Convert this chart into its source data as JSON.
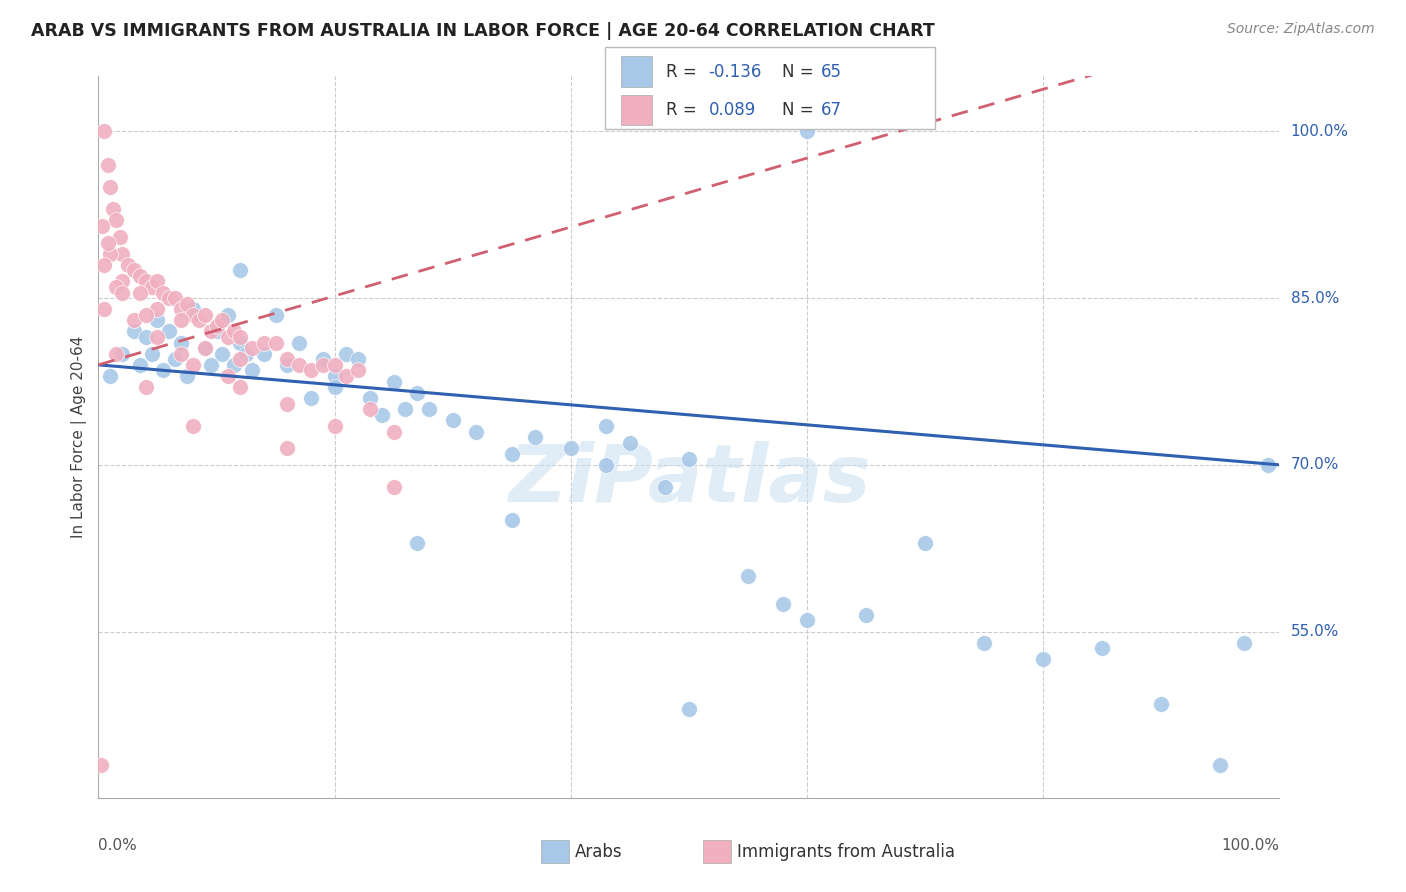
{
  "title": "ARAB VS IMMIGRANTS FROM AUSTRALIA IN LABOR FORCE | AGE 20-64 CORRELATION CHART",
  "source": "Source: ZipAtlas.com",
  "ylabel": "In Labor Force | Age 20-64",
  "xlim": [
    0,
    100
  ],
  "ylim": [
    40,
    105
  ],
  "yticks": [
    55.0,
    70.0,
    85.0,
    100.0
  ],
  "legend_arab_r": "-0.136",
  "legend_arab_n": "65",
  "legend_imm_r": "0.089",
  "legend_imm_n": "67",
  "watermark": "ZiPatlas",
  "arab_color": "#a8c8e8",
  "arab_line_color": "#3060b0",
  "imm_color": "#f0b0c0",
  "imm_line_color": "#d06070",
  "arab_scatter_x": [
    1.0,
    2.0,
    3.0,
    3.5,
    4.0,
    4.5,
    5.0,
    5.5,
    6.0,
    6.5,
    7.0,
    7.5,
    8.0,
    9.0,
    9.5,
    10.0,
    10.5,
    11.0,
    11.5,
    12.0,
    12.5,
    13.0,
    14.0,
    15.0,
    16.0,
    17.0,
    18.0,
    19.0,
    20.0,
    21.0,
    22.0,
    23.0,
    24.0,
    25.0,
    26.0,
    27.0,
    28.0,
    30.0,
    32.0,
    35.0,
    37.0,
    40.0,
    43.0,
    45.0,
    48.0,
    50.0,
    55.0,
    58.0,
    60.0,
    65.0,
    70.0,
    75.0,
    80.0,
    85.0,
    90.0,
    95.0,
    97.0,
    99.0,
    12.0,
    20.0,
    27.0,
    35.0,
    43.0,
    50.0,
    60.0
  ],
  "arab_scatter_y": [
    78.0,
    80.0,
    82.0,
    79.0,
    81.5,
    80.0,
    83.0,
    78.5,
    82.0,
    79.5,
    81.0,
    78.0,
    84.0,
    80.5,
    79.0,
    82.0,
    80.0,
    83.5,
    79.0,
    81.0,
    80.0,
    78.5,
    80.0,
    83.5,
    79.0,
    81.0,
    76.0,
    79.5,
    78.0,
    80.0,
    79.5,
    76.0,
    74.5,
    77.5,
    75.0,
    76.5,
    75.0,
    74.0,
    73.0,
    71.0,
    72.5,
    71.5,
    70.0,
    72.0,
    68.0,
    70.5,
    60.0,
    57.5,
    56.0,
    56.5,
    63.0,
    54.0,
    52.5,
    53.5,
    48.5,
    43.0,
    54.0,
    70.0,
    87.5,
    77.0,
    63.0,
    65.0,
    73.5,
    48.0,
    100.0
  ],
  "imm_scatter_x": [
    0.5,
    0.8,
    1.0,
    1.2,
    1.5,
    1.8,
    2.0,
    2.5,
    3.0,
    3.5,
    4.0,
    4.5,
    5.0,
    5.5,
    6.0,
    6.5,
    7.0,
    7.5,
    8.0,
    8.5,
    9.0,
    9.5,
    10.0,
    10.5,
    11.0,
    11.5,
    12.0,
    13.0,
    14.0,
    15.0,
    16.0,
    17.0,
    18.0,
    19.0,
    20.0,
    21.0,
    22.0,
    23.0,
    25.0,
    0.3,
    1.0,
    2.0,
    3.5,
    5.0,
    7.0,
    9.0,
    12.0,
    16.0,
    0.5,
    1.5,
    3.0,
    5.0,
    8.0,
    12.0,
    20.0,
    0.8,
    2.0,
    4.0,
    7.0,
    11.0,
    0.5,
    1.5,
    4.0,
    8.0,
    16.0,
    25.0,
    0.2
  ],
  "imm_scatter_y": [
    100.0,
    97.0,
    95.0,
    93.0,
    92.0,
    90.5,
    89.0,
    88.0,
    87.5,
    87.0,
    86.5,
    86.0,
    86.5,
    85.5,
    85.0,
    85.0,
    84.0,
    84.5,
    83.5,
    83.0,
    83.5,
    82.0,
    82.5,
    83.0,
    81.5,
    82.0,
    81.5,
    80.5,
    81.0,
    81.0,
    79.5,
    79.0,
    78.5,
    79.0,
    79.0,
    78.0,
    78.5,
    75.0,
    73.0,
    91.5,
    89.0,
    86.5,
    85.5,
    84.0,
    83.0,
    80.5,
    79.5,
    75.5,
    88.0,
    86.0,
    83.0,
    81.5,
    79.0,
    77.0,
    73.5,
    90.0,
    85.5,
    83.5,
    80.0,
    78.0,
    84.0,
    80.0,
    77.0,
    73.5,
    71.5,
    68.0,
    43.0
  ]
}
